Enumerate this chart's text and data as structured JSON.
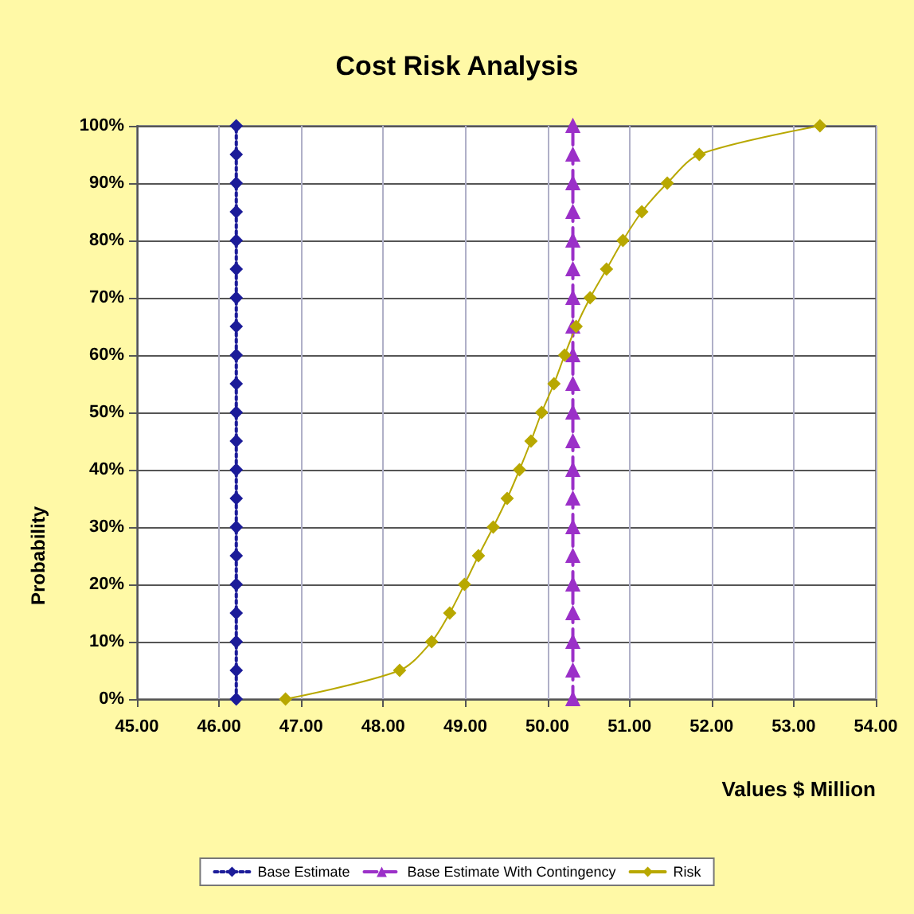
{
  "chart_data": {
    "type": "line",
    "title": "Cost Risk Analysis",
    "xlabel": "Values $ Million",
    "ylabel": "Probability",
    "xlim": [
      45,
      54
    ],
    "xticks": [
      {
        "value": 45,
        "label": "45.00"
      },
      {
        "value": 46,
        "label": "46.00"
      },
      {
        "value": 47,
        "label": "47.00"
      },
      {
        "value": 48,
        "label": "48.00"
      },
      {
        "value": 49,
        "label": "49.00"
      },
      {
        "value": 50,
        "label": "50.00"
      },
      {
        "value": 51,
        "label": "51.00"
      },
      {
        "value": 52,
        "label": "52.00"
      },
      {
        "value": 53,
        "label": "53.00"
      },
      {
        "value": 54,
        "label": "54.00"
      }
    ],
    "ylim": [
      0,
      100
    ],
    "yticks": [
      {
        "value": 0,
        "label": "0%"
      },
      {
        "value": 10,
        "label": "10%"
      },
      {
        "value": 20,
        "label": "20%"
      },
      {
        "value": 30,
        "label": "30%"
      },
      {
        "value": 40,
        "label": "40%"
      },
      {
        "value": 50,
        "label": "50%"
      },
      {
        "value": 60,
        "label": "60%"
      },
      {
        "value": 70,
        "label": "70%"
      },
      {
        "value": 80,
        "label": "80%"
      },
      {
        "value": 90,
        "label": "90%"
      },
      {
        "value": 100,
        "label": "100%"
      }
    ],
    "grid": true,
    "legend": "bottom",
    "series": [
      {
        "name": "Base Estimate",
        "color": "#1c1c99",
        "marker": "diamond",
        "line_style": "dotted",
        "x": [
          46.21,
          46.21,
          46.21,
          46.21,
          46.21,
          46.21,
          46.21,
          46.21,
          46.21,
          46.21,
          46.21,
          46.21,
          46.21,
          46.21,
          46.21,
          46.21,
          46.21,
          46.21,
          46.21,
          46.21,
          46.21
        ],
        "values": [
          0,
          5,
          10,
          15,
          20,
          25,
          30,
          35,
          40,
          45,
          50,
          55,
          60,
          65,
          70,
          75,
          80,
          85,
          90,
          95,
          100
        ]
      },
      {
        "name": "Base Estimate With Contingency",
        "color": "#9b30c8",
        "marker": "triangle",
        "line_style": "dashed",
        "x": [
          50.31,
          50.31,
          50.31,
          50.31,
          50.31,
          50.31,
          50.31,
          50.31,
          50.31,
          50.31,
          50.31,
          50.31,
          50.31,
          50.31,
          50.31,
          50.31,
          50.31,
          50.31,
          50.31,
          50.31,
          50.31
        ],
        "values": [
          0,
          5,
          10,
          15,
          20,
          25,
          30,
          35,
          40,
          45,
          50,
          55,
          60,
          65,
          70,
          75,
          80,
          85,
          90,
          95,
          100
        ]
      },
      {
        "name": "Risk",
        "color": "#b8a800",
        "marker": "diamond",
        "line_style": "solid",
        "x": [
          46.81,
          48.2,
          48.59,
          48.81,
          48.99,
          49.16,
          49.34,
          49.51,
          49.66,
          49.8,
          49.93,
          50.08,
          50.21,
          50.35,
          50.52,
          50.72,
          50.92,
          51.15,
          51.46,
          51.85,
          53.32
        ],
        "values": [
          0,
          5,
          10,
          15,
          20,
          25,
          30,
          35,
          40,
          45,
          50,
          55,
          60,
          65,
          70,
          75,
          80,
          85,
          90,
          95,
          100
        ]
      }
    ]
  }
}
